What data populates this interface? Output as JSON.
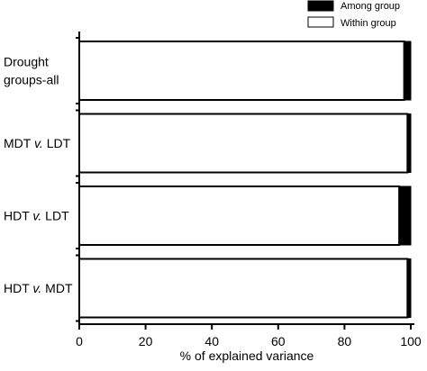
{
  "chart_data": {
    "type": "bar",
    "orientation": "horizontal",
    "stacked": true,
    "xlabel": "% of explained variance",
    "xlim": [
      0,
      100
    ],
    "xticks": [
      "0",
      "20",
      "40",
      "60",
      "80",
      "100"
    ],
    "categories": [
      [
        "Drought",
        "groups-all"
      ],
      [
        "MDT v. LDT"
      ],
      [
        "HDT v. LDT"
      ],
      [
        "HDT v. MDT"
      ]
    ],
    "series": [
      {
        "name": "Within group",
        "color": "#ffffff",
        "values": [
          98,
          99,
          96.5,
          99
        ]
      },
      {
        "name": "Among group",
        "color": "#000000",
        "values": [
          2,
          1,
          3.5,
          1
        ]
      }
    ],
    "legend": {
      "placement": "top-right",
      "entries": [
        "Among group",
        "Within group"
      ]
    },
    "grid": false
  }
}
